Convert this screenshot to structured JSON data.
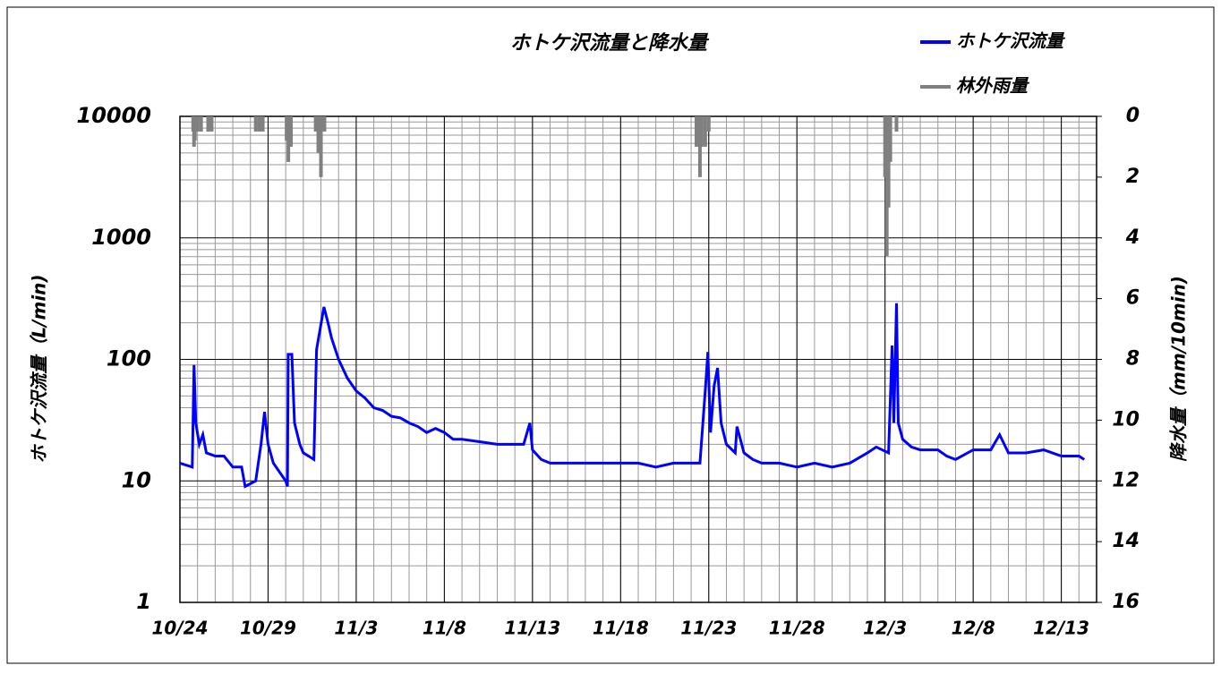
{
  "chart_data": {
    "type": "line",
    "title": "ホトケ沢流量と降水量",
    "y_label": "ホトケ沢流量（L/min)",
    "y2_label": "降水量（mm/10min)",
    "yscale": "log",
    "grid": true,
    "minor_grid": true,
    "legend": "top-right",
    "xlim": [
      0,
      52
    ],
    "xticks": [
      {
        "value": 0,
        "label": "10/24"
      },
      {
        "value": 5,
        "label": "10/29"
      },
      {
        "value": 10,
        "label": "11/3"
      },
      {
        "value": 15,
        "label": "11/8"
      },
      {
        "value": 20,
        "label": "11/13"
      },
      {
        "value": 25,
        "label": "11/18"
      },
      {
        "value": 30,
        "label": "11/23"
      },
      {
        "value": 35,
        "label": "11/28"
      },
      {
        "value": 40,
        "label": "12/3"
      },
      {
        "value": 45,
        "label": "12/8"
      },
      {
        "value": 50,
        "label": "12/13"
      }
    ],
    "ylim": [
      1,
      10000
    ],
    "yticks": [
      1,
      10,
      100,
      1000,
      10000
    ],
    "y2lim": [
      0,
      16
    ],
    "y2ticks": [
      0,
      2,
      4,
      6,
      8,
      10,
      12,
      14,
      16
    ],
    "y2_inverted": true,
    "series": [
      {
        "name": "ホトケ沢流量",
        "color": "#0000ff",
        "kind": "line",
        "x": [
          0,
          0.7,
          0.8,
          0.9,
          1.1,
          1.3,
          1.5,
          2,
          2.5,
          3,
          3.5,
          3.7,
          4.3,
          4.6,
          4.8,
          5.0,
          5.3,
          5.8,
          6.0,
          6.1,
          6.14,
          6.35,
          6.5,
          6.8,
          7,
          7.3,
          7.6,
          7.67,
          7.75,
          8.17,
          8.4,
          8.6,
          9,
          9.5,
          10,
          10.5,
          11,
          11.5,
          12,
          12.5,
          13,
          13.5,
          14,
          14.5,
          15,
          15.5,
          16,
          17,
          18,
          19,
          19.5,
          19.85,
          20,
          20.5,
          21,
          22,
          23,
          24,
          25,
          26,
          27,
          28,
          29,
          29.5,
          29.8,
          29.95,
          30.1,
          30.3,
          30.5,
          30.7,
          31,
          31.5,
          31.6,
          32,
          32.5,
          33,
          34,
          35,
          36,
          37,
          38,
          39,
          39.5,
          40.2,
          40.4,
          40.5,
          40.65,
          40.75,
          41,
          41.5,
          42,
          43,
          43.5,
          44,
          45,
          46,
          46.5,
          47,
          48,
          49,
          50,
          51,
          51.3
        ],
        "values": [
          14,
          13,
          90,
          30,
          20,
          24,
          17,
          16,
          16,
          13,
          13,
          9,
          10,
          20,
          37,
          20,
          14,
          11,
          10,
          9,
          110,
          110,
          30,
          20,
          17,
          16,
          15,
          40,
          120,
          270,
          200,
          150,
          100,
          70,
          55,
          48,
          40,
          38,
          34,
          33,
          30,
          28,
          25,
          27,
          25,
          22,
          22,
          21,
          20,
          20,
          20,
          30,
          18,
          15,
          14,
          14,
          14,
          14,
          14,
          14,
          13,
          14,
          14,
          14,
          55,
          115,
          25,
          60,
          85,
          30,
          20,
          17,
          28,
          17,
          15,
          14,
          14,
          13,
          14,
          13,
          14,
          17,
          19,
          17,
          130,
          30,
          290,
          30,
          22,
          19,
          18,
          18,
          16,
          15,
          18,
          18,
          24,
          17,
          17,
          18,
          16,
          16,
          15
        ]
      },
      {
        "name": "林外雨量",
        "color": "#808080",
        "kind": "rain",
        "axis": "y2",
        "x": [
          0.75,
          0.8,
          0.85,
          1.0,
          1.2,
          1.6,
          1.8,
          4.3,
          4.5,
          4.7,
          6.05,
          6.15,
          6.3,
          7.7,
          7.85,
          8.0,
          8.2,
          29.3,
          29.5,
          29.6,
          29.8,
          30.0,
          40.0,
          40.1,
          40.2,
          40.3,
          40.65
        ],
        "values": [
          0.5,
          1.0,
          0.8,
          0.5,
          0.5,
          0.5,
          0.5,
          0.5,
          0.5,
          0.5,
          0.8,
          1.5,
          1.0,
          0.5,
          1.2,
          2.0,
          0.5,
          1.0,
          2.0,
          1.0,
          1.0,
          0.5,
          2.0,
          4.6,
          3.0,
          1.5,
          0.5
        ]
      }
    ]
  }
}
